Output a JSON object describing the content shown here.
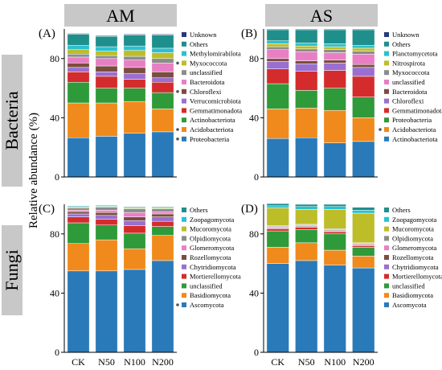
{
  "figure": {
    "col_headers": [
      "AM",
      "AS"
    ],
    "row_headers": [
      "Bacteria",
      "Fungi"
    ],
    "ylabel": "Relative abundance (%)",
    "panel_labels": [
      "(A)",
      "(B)",
      "(C)",
      "(D)"
    ]
  },
  "chart_data": [
    {
      "type": "bar",
      "stacked": true,
      "panel": "(A)",
      "title": "",
      "categories": [
        "CK",
        "N50",
        "N100",
        "N200"
      ],
      "ylim": [
        0,
        100
      ],
      "yticks": [
        0,
        40,
        80
      ],
      "xticks_visible": false,
      "legend_position": "right",
      "series": [
        {
          "name": "Proteobacteria",
          "color": "#2a7ab9",
          "marked": true,
          "values": [
            26.5,
            27.5,
            29.5,
            30.5
          ]
        },
        {
          "name": "Acidobacteriota",
          "color": "#f08a1c",
          "marked": true,
          "values": [
            23.5,
            22.5,
            21.5,
            15.5
          ]
        },
        {
          "name": "Actinobacteriota",
          "color": "#2f9a3a",
          "marked": false,
          "values": [
            14,
            10,
            9,
            11
          ]
        },
        {
          "name": "Gemmatimonadota",
          "color": "#d42c2c",
          "marked": false,
          "values": [
            7,
            8,
            6,
            7
          ]
        },
        {
          "name": "Verrucomicrobiota",
          "color": "#9a6fcf",
          "marked": false,
          "values": [
            3,
            3,
            4,
            3
          ]
        },
        {
          "name": "Chloroflexi",
          "color": "#7a4d3f",
          "marked": true,
          "values": [
            3,
            4,
            4,
            4
          ]
        },
        {
          "name": "Bacteroidota",
          "color": "#e87fc4",
          "marked": false,
          "values": [
            4,
            5,
            5,
            6
          ]
        },
        {
          "name": "unclassified",
          "color": "#8c8c8c",
          "marked": false,
          "values": [
            2,
            2,
            2.5,
            3
          ]
        },
        {
          "name": "Myxococcota",
          "color": "#bdbd2a",
          "marked": true,
          "values": [
            3,
            3,
            4,
            4
          ]
        },
        {
          "name": "Methylomirabilota",
          "color": "#2cc0cf",
          "marked": false,
          "values": [
            3,
            3,
            3,
            3
          ]
        },
        {
          "name": "Others",
          "color": "#1f8f8c",
          "marked": false,
          "values": [
            7.5,
            7,
            7.5,
            9
          ]
        },
        {
          "name": "Unknown",
          "color": "#283a7a",
          "marked": false,
          "values": [
            0.5,
            0.5,
            0.5,
            0.5
          ]
        }
      ]
    },
    {
      "type": "bar",
      "stacked": true,
      "panel": "(B)",
      "title": "",
      "categories": [
        "CK",
        "N50",
        "N100",
        "N200"
      ],
      "ylim": [
        0,
        100
      ],
      "yticks": [
        0,
        40,
        80
      ],
      "xticks_visible": false,
      "legend_position": "right",
      "series": [
        {
          "name": "Actinobacteriota",
          "color": "#2a7ab9",
          "marked": false,
          "values": [
            26,
            26.5,
            23,
            24
          ]
        },
        {
          "name": "Acidobacteriota",
          "color": "#f08a1c",
          "marked": true,
          "values": [
            20,
            20,
            22,
            16
          ]
        },
        {
          "name": "Proteobacteria",
          "color": "#2f9a3a",
          "marked": false,
          "values": [
            17,
            12,
            15,
            14
          ]
        },
        {
          "name": "Gemmatimonadota",
          "color": "#d42c2c",
          "marked": false,
          "values": [
            10,
            13,
            12,
            14
          ]
        },
        {
          "name": "Chloroflexi",
          "color": "#9a6fcf",
          "marked": false,
          "values": [
            5,
            5,
            5,
            6
          ]
        },
        {
          "name": "Bacteroidota",
          "color": "#7a4d3f",
          "marked": false,
          "values": [
            2,
            2,
            2,
            2
          ]
        },
        {
          "name": "unclassified",
          "color": "#e87fc4",
          "marked": false,
          "values": [
            6,
            6,
            5,
            7
          ]
        },
        {
          "name": "Myxococcota",
          "color": "#8c8c8c",
          "marked": false,
          "values": [
            2,
            2,
            2,
            2
          ]
        },
        {
          "name": "Nitrospirota",
          "color": "#bdbd2a",
          "marked": false,
          "values": [
            2,
            2,
            2,
            2
          ]
        },
        {
          "name": "Planctomycetota",
          "color": "#2cc0cf",
          "marked": false,
          "values": [
            2,
            2,
            2,
            2
          ]
        },
        {
          "name": "Others",
          "color": "#1f8f8c",
          "marked": false,
          "values": [
            7.5,
            9,
            9.5,
            10.5
          ]
        },
        {
          "name": "Unknown",
          "color": "#283a7a",
          "marked": false,
          "values": [
            0.5,
            0.5,
            0.5,
            0.5
          ]
        }
      ]
    },
    {
      "type": "bar",
      "stacked": true,
      "panel": "(C)",
      "title": "",
      "categories": [
        "CK",
        "N50",
        "N100",
        "N200"
      ],
      "ylim": [
        0,
        100
      ],
      "yticks": [
        0,
        40,
        80
      ],
      "xticks_visible": false,
      "legend_position": "right",
      "series": [
        {
          "name": "Ascomycota",
          "color": "#2a7ab9",
          "marked": true,
          "values": [
            55,
            55,
            56,
            62
          ]
        },
        {
          "name": "Basidiomycota",
          "color": "#f08a1c",
          "marked": false,
          "values": [
            18.5,
            21,
            14,
            17
          ]
        },
        {
          "name": "unclassified",
          "color": "#2f9a3a",
          "marked": false,
          "values": [
            14,
            10,
            10.5,
            6
          ]
        },
        {
          "name": "Mortierellomycota",
          "color": "#d42c2c",
          "marked": false,
          "values": [
            4,
            4,
            5,
            3.5
          ]
        },
        {
          "name": "Chytridiomycota",
          "color": "#9a6fcf",
          "marked": false,
          "values": [
            2,
            2.5,
            3.5,
            3
          ]
        },
        {
          "name": "Rozellomycota",
          "color": "#7a4d3f",
          "marked": false,
          "values": [
            1.5,
            2,
            2.5,
            2
          ]
        },
        {
          "name": "Glomeromycota",
          "color": "#e87fc4",
          "marked": false,
          "values": [
            1,
            1.5,
            3,
            1.5
          ]
        },
        {
          "name": "Olpidiomycota",
          "color": "#8c8c8c",
          "marked": false,
          "values": [
            1.5,
            2,
            2.5,
            2
          ]
        },
        {
          "name": "Mucoromycota",
          "color": "#bdbd2a",
          "marked": false,
          "values": [
            0.5,
            0.5,
            0.5,
            0.5
          ]
        },
        {
          "name": "Zoopagomycota",
          "color": "#2cc0cf",
          "marked": false,
          "values": [
            0.5,
            0.5,
            0.5,
            0.5
          ]
        },
        {
          "name": "Others",
          "color": "#1f8f8c",
          "marked": false,
          "values": [
            0.5,
            0.5,
            0.5,
            0.5
          ]
        }
      ]
    },
    {
      "type": "bar",
      "stacked": true,
      "panel": "(D)",
      "title": "",
      "categories": [
        "CK",
        "N50",
        "N100",
        "N200"
      ],
      "ylim": [
        0,
        100
      ],
      "yticks": [
        0,
        40,
        80
      ],
      "xticks_visible": true,
      "legend_position": "right",
      "series": [
        {
          "name": "Ascomycota",
          "color": "#2a7ab9",
          "marked": false,
          "values": [
            60,
            62,
            59,
            57
          ]
        },
        {
          "name": "Basidiomycota",
          "color": "#f08a1c",
          "marked": false,
          "values": [
            11,
            12,
            10,
            8
          ]
        },
        {
          "name": "unclassified",
          "color": "#2f9a3a",
          "marked": false,
          "values": [
            11,
            9,
            11,
            6
          ]
        },
        {
          "name": "Mortierellomycota",
          "color": "#d42c2c",
          "marked": false,
          "values": [
            1.5,
            1.5,
            1.5,
            1
          ]
        },
        {
          "name": "Chytridiomycota",
          "color": "#9a6fcf",
          "marked": false,
          "values": [
            0.5,
            0.5,
            0.5,
            0.5
          ]
        },
        {
          "name": "Rozellomycota",
          "color": "#7a4d3f",
          "marked": false,
          "values": [
            0.5,
            0.5,
            0.5,
            0.5
          ]
        },
        {
          "name": "Glomeromycota",
          "color": "#e87fc4",
          "marked": false,
          "values": [
            0.5,
            0.5,
            0.5,
            0.5
          ]
        },
        {
          "name": "Olpidiomycota",
          "color": "#8c8c8c",
          "marked": false,
          "values": [
            0.5,
            0.5,
            0.5,
            0.5
          ]
        },
        {
          "name": "Mucoromycota",
          "color": "#bdbd2a",
          "marked": false,
          "values": [
            12,
            10,
            13,
            20
          ]
        },
        {
          "name": "Zoopagomycota",
          "color": "#2cc0cf",
          "marked": false,
          "values": [
            1.5,
            2,
            2,
            2
          ]
        },
        {
          "name": "Others",
          "color": "#1f8f8c",
          "marked": false,
          "values": [
            1.5,
            1.5,
            1.5,
            2
          ]
        }
      ]
    }
  ]
}
